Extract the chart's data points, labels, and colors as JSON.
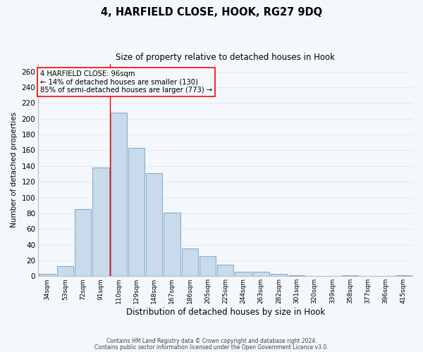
{
  "title": "4, HARFIELD CLOSE, HOOK, RG27 9DQ",
  "subtitle": "Size of property relative to detached houses in Hook",
  "xlabel": "Distribution of detached houses by size in Hook",
  "ylabel": "Number of detached properties",
  "bar_color": "#c9daea",
  "bar_edge_color": "#7aaac8",
  "categories": [
    "34sqm",
    "53sqm",
    "72sqm",
    "91sqm",
    "110sqm",
    "129sqm",
    "148sqm",
    "167sqm",
    "186sqm",
    "205sqm",
    "225sqm",
    "244sqm",
    "263sqm",
    "282sqm",
    "301sqm",
    "320sqm",
    "339sqm",
    "358sqm",
    "377sqm",
    "396sqm",
    "415sqm"
  ],
  "values": [
    3,
    13,
    85,
    138,
    208,
    163,
    131,
    81,
    35,
    25,
    15,
    6,
    6,
    3,
    1,
    0,
    0,
    1,
    0,
    0,
    1
  ],
  "ylim": [
    0,
    270
  ],
  "yticks": [
    0,
    20,
    40,
    60,
    80,
    100,
    120,
    140,
    160,
    180,
    200,
    220,
    240,
    260
  ],
  "red_line_x": 3.5,
  "annotation_title": "4 HARFIELD CLOSE: 96sqm",
  "annotation_line1": "← 14% of detached houses are smaller (130)",
  "annotation_line2": "85% of semi-detached houses are larger (773) →",
  "footnote1": "Contains HM Land Registry data © Crown copyright and database right 2024.",
  "footnote2": "Contains public sector information licensed under the Open Government Licence v3.0.",
  "background_color": "#f4f7fb",
  "grid_color": "#dde6f0"
}
